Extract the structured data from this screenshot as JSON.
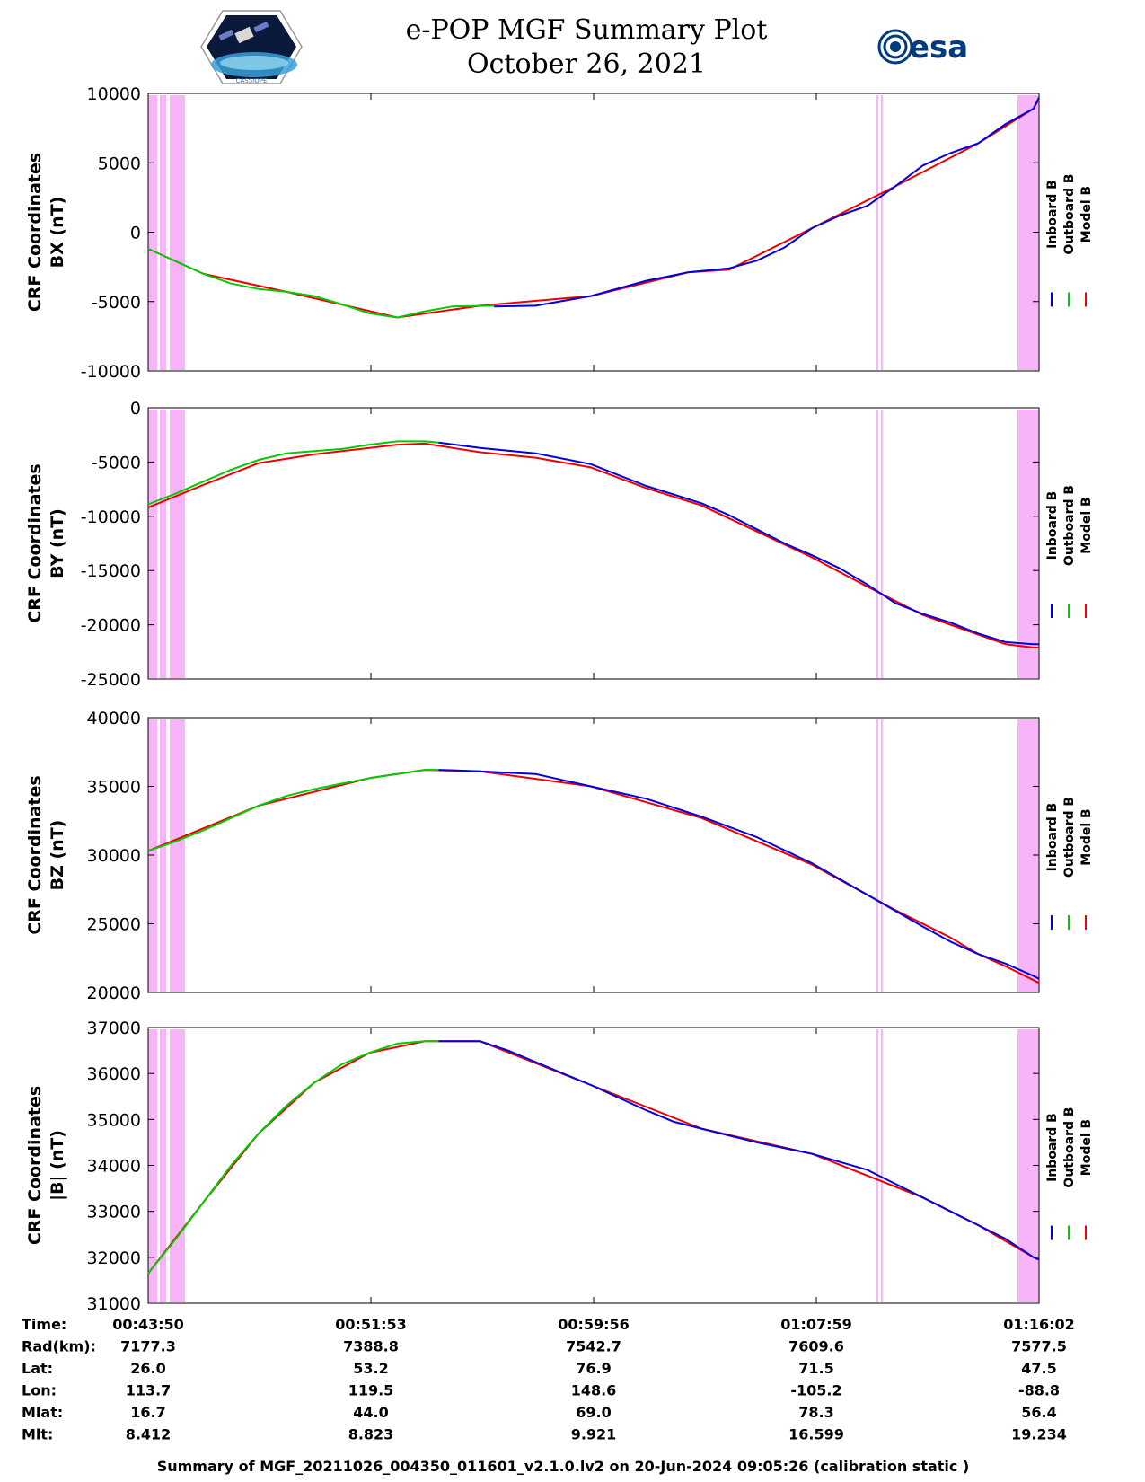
{
  "header": {
    "title_line1": "e-POP MGF Summary Plot",
    "title_line2": "October 26, 2021",
    "left_logo": "cassiope-mission-logo",
    "left_logo_caption": "CASSIOPE",
    "right_logo_text": "esa"
  },
  "colors": {
    "inboard": "#0000dd",
    "outboard": "#00cc00",
    "model": "#ee0000",
    "shade": "#f8b4f8"
  },
  "legend": [
    "Inboard B",
    "Outboard B",
    "Model B"
  ],
  "chart_data": [
    {
      "type": "line",
      "ylabel": [
        "CRF Coordinates",
        "BX (nT)"
      ],
      "ylim": [
        -10000,
        10000
      ],
      "yticks": [
        -10000,
        -5000,
        0,
        5000,
        10000
      ],
      "x_unit": "minutes since 00:43:50",
      "series": [
        {
          "name": "Inboard B",
          "x": [
            12.5,
            14,
            16,
            18,
            19.5,
            21,
            22,
            23,
            24,
            25,
            26,
            27,
            28,
            29,
            30,
            31,
            32,
            32.2
          ],
          "values": [
            -5350,
            -5300,
            -4600,
            -3500,
            -2900,
            -2600,
            -2050,
            -1100,
            300,
            1200,
            1900,
            3300,
            4800,
            5700,
            6400,
            7800,
            8900,
            9700
          ]
        },
        {
          "name": "Outboard B",
          "x": [
            0,
            1,
            2,
            3,
            4,
            5,
            6,
            7,
            8,
            9,
            10,
            11,
            12.5
          ],
          "values": [
            -1200,
            -2100,
            -3000,
            -3700,
            -4100,
            -4300,
            -4600,
            -5200,
            -5850,
            -6150,
            -5700,
            -5350,
            -5300
          ]
        },
        {
          "name": "Model B",
          "x": [
            0,
            2,
            5,
            9,
            12,
            16,
            19.5,
            21,
            24,
            27,
            30,
            32,
            32.2
          ],
          "values": [
            -1200,
            -3000,
            -4300,
            -6150,
            -5300,
            -4600,
            -2900,
            -2700,
            300,
            3300,
            6400,
            8900,
            9600
          ]
        }
      ]
    },
    {
      "type": "line",
      "ylabel": [
        "CRF Coordinates",
        "BY (nT)"
      ],
      "ylim": [
        -25000,
        0
      ],
      "yticks": [
        -25000,
        -20000,
        -15000,
        -10000,
        -5000,
        0
      ],
      "x_unit": "minutes since 00:43:50",
      "series": [
        {
          "name": "Inboard B",
          "x": [
            10.5,
            12,
            14,
            16,
            17,
            18,
            19,
            20,
            21,
            22,
            23,
            24,
            25,
            26,
            27,
            28,
            29,
            30,
            31,
            32,
            32.2
          ],
          "values": [
            -3200,
            -3700,
            -4200,
            -5200,
            -6200,
            -7200,
            -8000,
            -8800,
            -9900,
            -11200,
            -12500,
            -13600,
            -14800,
            -16300,
            -18000,
            -19000,
            -19800,
            -20800,
            -21600,
            -21800,
            -21800
          ]
        },
        {
          "name": "Outboard B",
          "x": [
            0,
            1,
            2,
            3,
            4,
            5,
            6,
            7,
            8,
            9,
            10,
            10.5
          ],
          "values": [
            -8900,
            -7900,
            -6800,
            -5700,
            -4800,
            -4200,
            -4000,
            -3800,
            -3400,
            -3100,
            -3100,
            -3200
          ]
        },
        {
          "name": "Model B",
          "x": [
            0,
            2,
            4,
            6,
            8,
            9,
            10,
            12,
            14,
            16,
            18,
            20,
            22,
            24,
            26,
            28,
            30,
            31,
            32,
            32.2
          ],
          "values": [
            -9200,
            -7100,
            -5100,
            -4300,
            -3700,
            -3400,
            -3300,
            -4100,
            -4600,
            -5500,
            -7400,
            -9000,
            -11400,
            -13800,
            -16500,
            -19100,
            -20900,
            -21800,
            -22100,
            -22100
          ]
        }
      ]
    },
    {
      "type": "line",
      "ylabel": [
        "CRF Coordinates",
        "BZ (nT)"
      ],
      "ylim": [
        20000,
        40000
      ],
      "yticks": [
        20000,
        25000,
        30000,
        35000,
        40000
      ],
      "x_unit": "minutes since 00:43:50",
      "series": [
        {
          "name": "Inboard B",
          "x": [
            10.5,
            12,
            14,
            16,
            18,
            20,
            22,
            24,
            26,
            28,
            29,
            30,
            31,
            32,
            32.2
          ],
          "values": [
            36200,
            36100,
            35900,
            35000,
            34100,
            32800,
            31300,
            29400,
            27100,
            24800,
            23700,
            22800,
            22100,
            21200,
            21000
          ]
        },
        {
          "name": "Outboard B",
          "x": [
            0,
            1,
            2,
            3,
            4,
            5,
            6,
            7,
            8,
            9,
            10,
            10.5
          ],
          "values": [
            30300,
            31000,
            31800,
            32700,
            33600,
            34300,
            34800,
            35200,
            35600,
            35900,
            36200,
            36200
          ]
        },
        {
          "name": "Model B",
          "x": [
            0,
            4,
            8,
            10,
            12,
            16,
            20,
            24,
            27,
            29,
            30,
            31,
            32,
            32.2
          ],
          "values": [
            30300,
            33600,
            35600,
            36200,
            36100,
            35000,
            32700,
            29300,
            26000,
            24000,
            22800,
            21900,
            20900,
            20700
          ]
        }
      ]
    },
    {
      "type": "line",
      "ylabel": [
        "CRF Coordinates",
        "|B| (nT)"
      ],
      "ylim": [
        31000,
        37000
      ],
      "yticks": [
        31000,
        32000,
        33000,
        34000,
        35000,
        36000,
        37000
      ],
      "x_unit": "minutes since 00:43:50",
      "series": [
        {
          "name": "Inboard B",
          "x": [
            10.5,
            12,
            13,
            14,
            16,
            18,
            19,
            20,
            22,
            24,
            26,
            27,
            28,
            29,
            30,
            31,
            32,
            32.2
          ],
          "values": [
            36700,
            36700,
            36500,
            36250,
            35750,
            35200,
            34950,
            34800,
            34500,
            34250,
            33900,
            33600,
            33300,
            33000,
            32700,
            32400,
            32000,
            31950
          ]
        },
        {
          "name": "Outboard B",
          "x": [
            0,
            1,
            2,
            3,
            4,
            5,
            6,
            7,
            8,
            9,
            10,
            10.5
          ],
          "values": [
            31650,
            32400,
            33200,
            34000,
            34700,
            35300,
            35800,
            36200,
            36450,
            36650,
            36700,
            36700
          ]
        },
        {
          "name": "Model B",
          "x": [
            0,
            2,
            4,
            6,
            8,
            10,
            12,
            16,
            20,
            24,
            28,
            30,
            32,
            32.2
          ],
          "values": [
            31650,
            33200,
            34700,
            35800,
            36450,
            36700,
            36700,
            35750,
            34800,
            34250,
            33300,
            32700,
            32000,
            31950
          ]
        }
      ]
    }
  ],
  "table": {
    "row_labels": [
      "Time:",
      "Rad(km):",
      "Lat:",
      "Lon:",
      "Mlat:",
      "Mlt:"
    ],
    "columns": [
      {
        "values": [
          "00:43:50",
          "7177.3",
          "26.0",
          "113.7",
          "16.7",
          "8.412"
        ]
      },
      {
        "values": [
          "00:51:53",
          "7388.8",
          "53.2",
          "119.5",
          "44.0",
          "8.823"
        ]
      },
      {
        "values": [
          "00:59:56",
          "7542.7",
          "76.9",
          "148.6",
          "69.0",
          "9.921"
        ]
      },
      {
        "values": [
          "01:07:59",
          "7609.6",
          "71.5",
          "-105.2",
          "78.3",
          "16.599"
        ]
      },
      {
        "values": [
          "01:16:02",
          "7577.5",
          "47.5",
          "-88.8",
          "56.4",
          "19.234"
        ]
      }
    ]
  },
  "footer": "Summary of MGF_20211026_004350_011601_v2.1.0.lv2 on 20-Jun-2024 09:05:26 (calibration static )"
}
